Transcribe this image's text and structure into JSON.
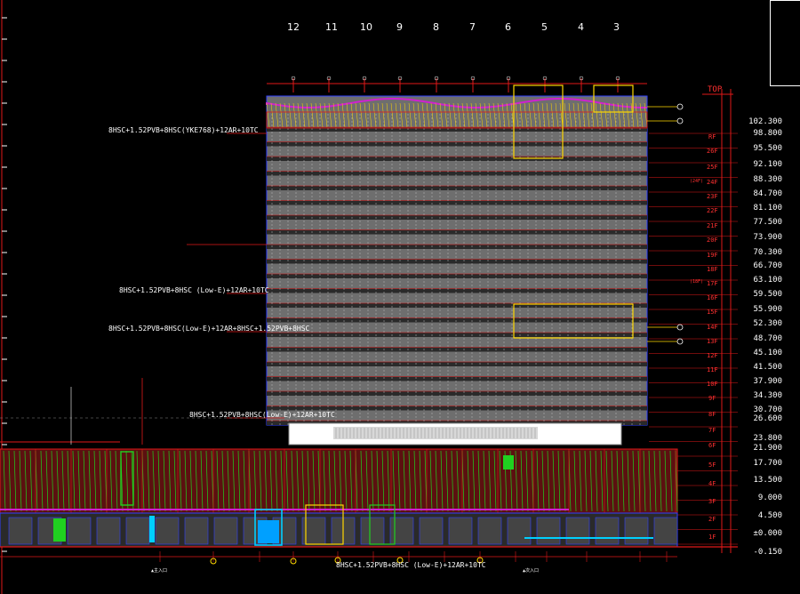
{
  "drawing": {
    "grid_numbers": [
      "12",
      "11",
      "10",
      "9",
      "8",
      "7",
      "6",
      "5",
      "4",
      "3"
    ],
    "top_label": "TOP",
    "elevations": [
      "102.300",
      "98.800",
      "95.500",
      "92.100",
      "88.300",
      "84.700",
      "81.100",
      "77.500",
      "73.900",
      "70.300",
      "66.700",
      "63.100",
      "59.500",
      "55.900",
      "52.300",
      "48.700",
      "45.100",
      "41.500",
      "37.900",
      "34.300",
      "30.700",
      "26.600",
      "23.800",
      "21.900",
      "17.700",
      "13.500",
      "9.000",
      "4.500",
      "±0.000",
      "-0.150"
    ],
    "floor_labels": [
      "RF",
      "26F",
      "25F",
      "24F",
      "23F",
      "22F",
      "21F",
      "20F",
      "19F",
      "18F",
      "17F",
      "16F",
      "15F",
      "14F",
      "13F",
      "12F",
      "11F",
      "10F",
      "9F",
      "8F",
      "7F",
      "6F",
      "5F",
      "4F",
      "3F",
      "2F",
      "1F"
    ],
    "glass_notes": [
      "8HSC+1.52PVB+8HSC(YKE768)+12AR+10TC",
      "8HSC+1.52PVB+8HSC (Low-E)+12AR+10TC",
      "8HSC+1.52PVB+8HSC(Low-E)+12AR+8HSC+1.52PVB+8HSC",
      "8HSC+1.52PVB+8HSC(Low-E)+12AR+10TC",
      "8HSC+1.52PVB+8HSC (Low-E)+12AR+10TC"
    ],
    "notes_red": [
      "(24F)",
      "(18F)"
    ],
    "bottom_labels": [
      "▲主入口",
      "▲次入口"
    ],
    "colors": {
      "facade_grey": "#6e6e6e",
      "grid_red": "#e01818",
      "mullion_magenta": "#d020d0",
      "podium_green": "#20d020",
      "accent_yellow": "#ffd800",
      "dim_blue": "#3040ff"
    }
  }
}
